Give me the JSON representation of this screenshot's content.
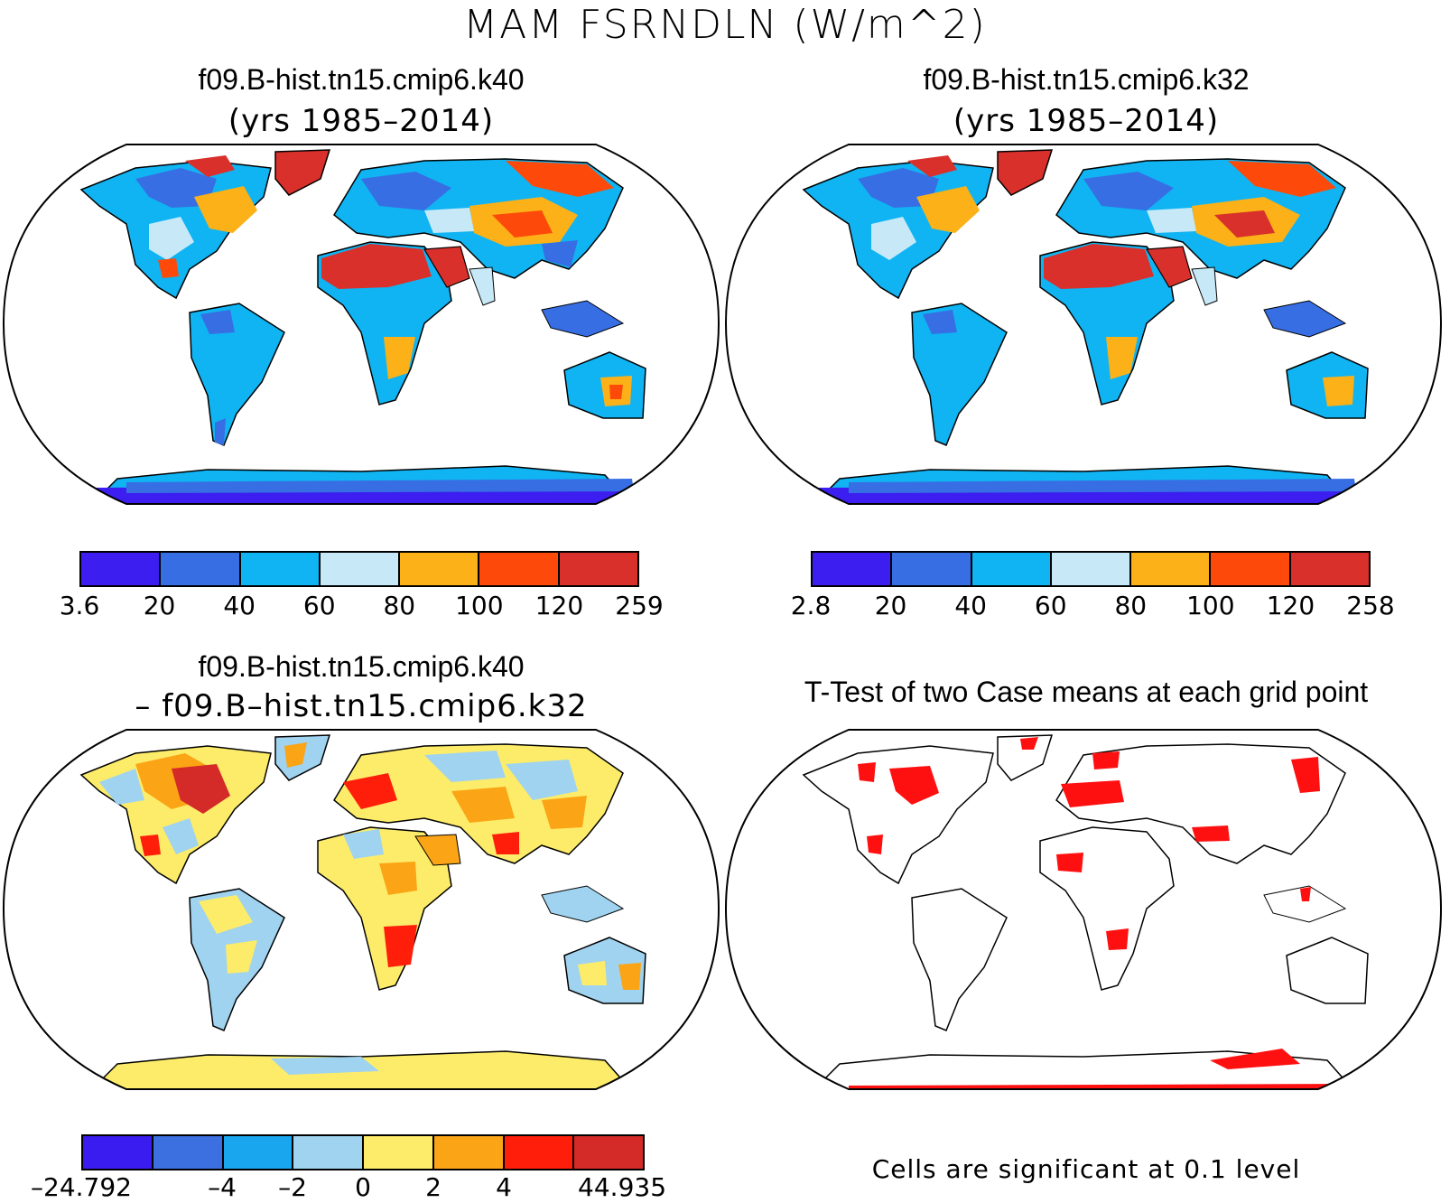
{
  "title": "MAM FSRNDLN (W/m^2)",
  "panels": {
    "k40": {
      "title": "f09.B-hist.tn15.cmip6.k40",
      "subtitle": "(yrs 1985–2014)",
      "legend_ticks": [
        "3.6",
        "20",
        "40",
        "60",
        "80",
        "100",
        "120",
        "259"
      ]
    },
    "k32": {
      "title": "f09.B-hist.tn15.cmip6.k32",
      "subtitle": "(yrs 1985–2014)",
      "legend_ticks": [
        "2.8",
        "20",
        "40",
        "60",
        "80",
        "100",
        "120",
        "258"
      ]
    },
    "diff": {
      "title": "f09.B-hist.tn15.cmip6.k40",
      "subtitle": "– f09.B–hist.tn15.cmip6.k32",
      "legend_ticks": [
        "–24.792",
        "–4",
        "–2",
        "0",
        "2",
        "4",
        "44.935"
      ]
    },
    "ttest": {
      "title": "T-Test of two Case means at each grid point",
      "note": "Cells are significant at 0.1 level"
    }
  },
  "colors": {
    "abs_scale": [
      "#3c1ef0",
      "#376ee4",
      "#10b4f2",
      "#c7e9f7",
      "#fbb117",
      "#fd4a0a",
      "#d9302b"
    ],
    "diff_scale": [
      "#3a1cf0",
      "#3c6fe0",
      "#1aa6ef",
      "#9fd3ef",
      "#fdec6a",
      "#fba415",
      "#ff1e0a",
      "#d42a28"
    ],
    "significant": "#ff1010"
  }
}
